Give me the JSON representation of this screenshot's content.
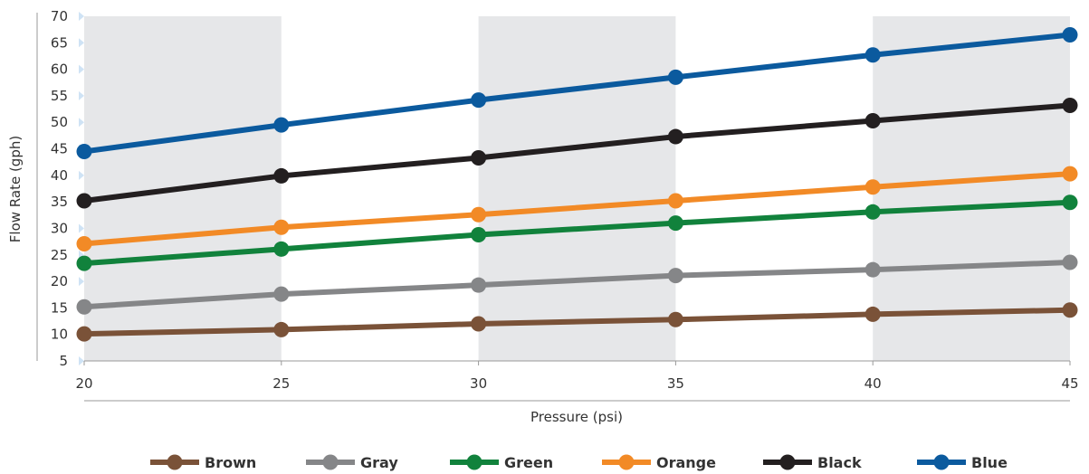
{
  "chart_data": {
    "type": "line",
    "xlabel": "Pressure (psi)",
    "ylabel": "Flow Rate (gph)",
    "x": [
      20,
      25,
      30,
      35,
      40,
      45
    ],
    "xlim": [
      20,
      45
    ],
    "ylim": [
      5,
      70
    ],
    "xticks": [
      "20",
      "25",
      "30",
      "35",
      "40",
      "45"
    ],
    "yticks": [
      "5",
      "10",
      "15",
      "20",
      "25",
      "30",
      "35",
      "40",
      "45",
      "50",
      "55",
      "60",
      "65",
      "70"
    ],
    "grid": "alternating vertical bands",
    "band_color": "#e6e7e9",
    "legend_position": "bottom",
    "series": [
      {
        "name": "Brown",
        "color": "#7a5238",
        "values": [
          10.1,
          10.9,
          12.0,
          12.8,
          13.8,
          14.6
        ]
      },
      {
        "name": "Gray",
        "color": "#858688",
        "values": [
          15.2,
          17.6,
          19.3,
          21.1,
          22.2,
          23.6
        ]
      },
      {
        "name": "Green",
        "color": "#11823c",
        "values": [
          23.4,
          26.1,
          28.8,
          31.0,
          33.1,
          34.9
        ]
      },
      {
        "name": "Orange",
        "color": "#f28a26",
        "values": [
          27.1,
          30.2,
          32.6,
          35.2,
          37.8,
          40.3
        ]
      },
      {
        "name": "Black",
        "color": "#231f20",
        "values": [
          35.2,
          39.9,
          43.3,
          47.3,
          50.3,
          53.2
        ]
      },
      {
        "name": "Blue",
        "color": "#0b5a9e",
        "values": [
          44.5,
          49.5,
          54.2,
          58.5,
          62.7,
          66.5
        ]
      }
    ]
  }
}
